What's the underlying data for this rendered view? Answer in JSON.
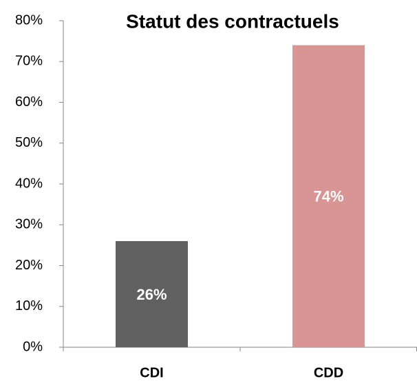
{
  "chart_data": {
    "type": "bar",
    "title": "Statut des contractuels",
    "categories": [
      "CDI",
      "CDD"
    ],
    "values": [
      26,
      74
    ],
    "value_labels": [
      "26%",
      "74%"
    ],
    "colors": [
      "#606060",
      "#d99594"
    ],
    "ylim": [
      0,
      80
    ],
    "yticks": [
      {
        "value": 0,
        "label": "0%"
      },
      {
        "value": 10,
        "label": "10%"
      },
      {
        "value": 20,
        "label": "20%"
      },
      {
        "value": 30,
        "label": "30%"
      },
      {
        "value": 40,
        "label": "40%"
      },
      {
        "value": 50,
        "label": "50%"
      },
      {
        "value": 60,
        "label": "60%"
      },
      {
        "value": 70,
        "label": "70%"
      },
      {
        "value": 80,
        "label": "80%"
      }
    ],
    "grid": false
  }
}
